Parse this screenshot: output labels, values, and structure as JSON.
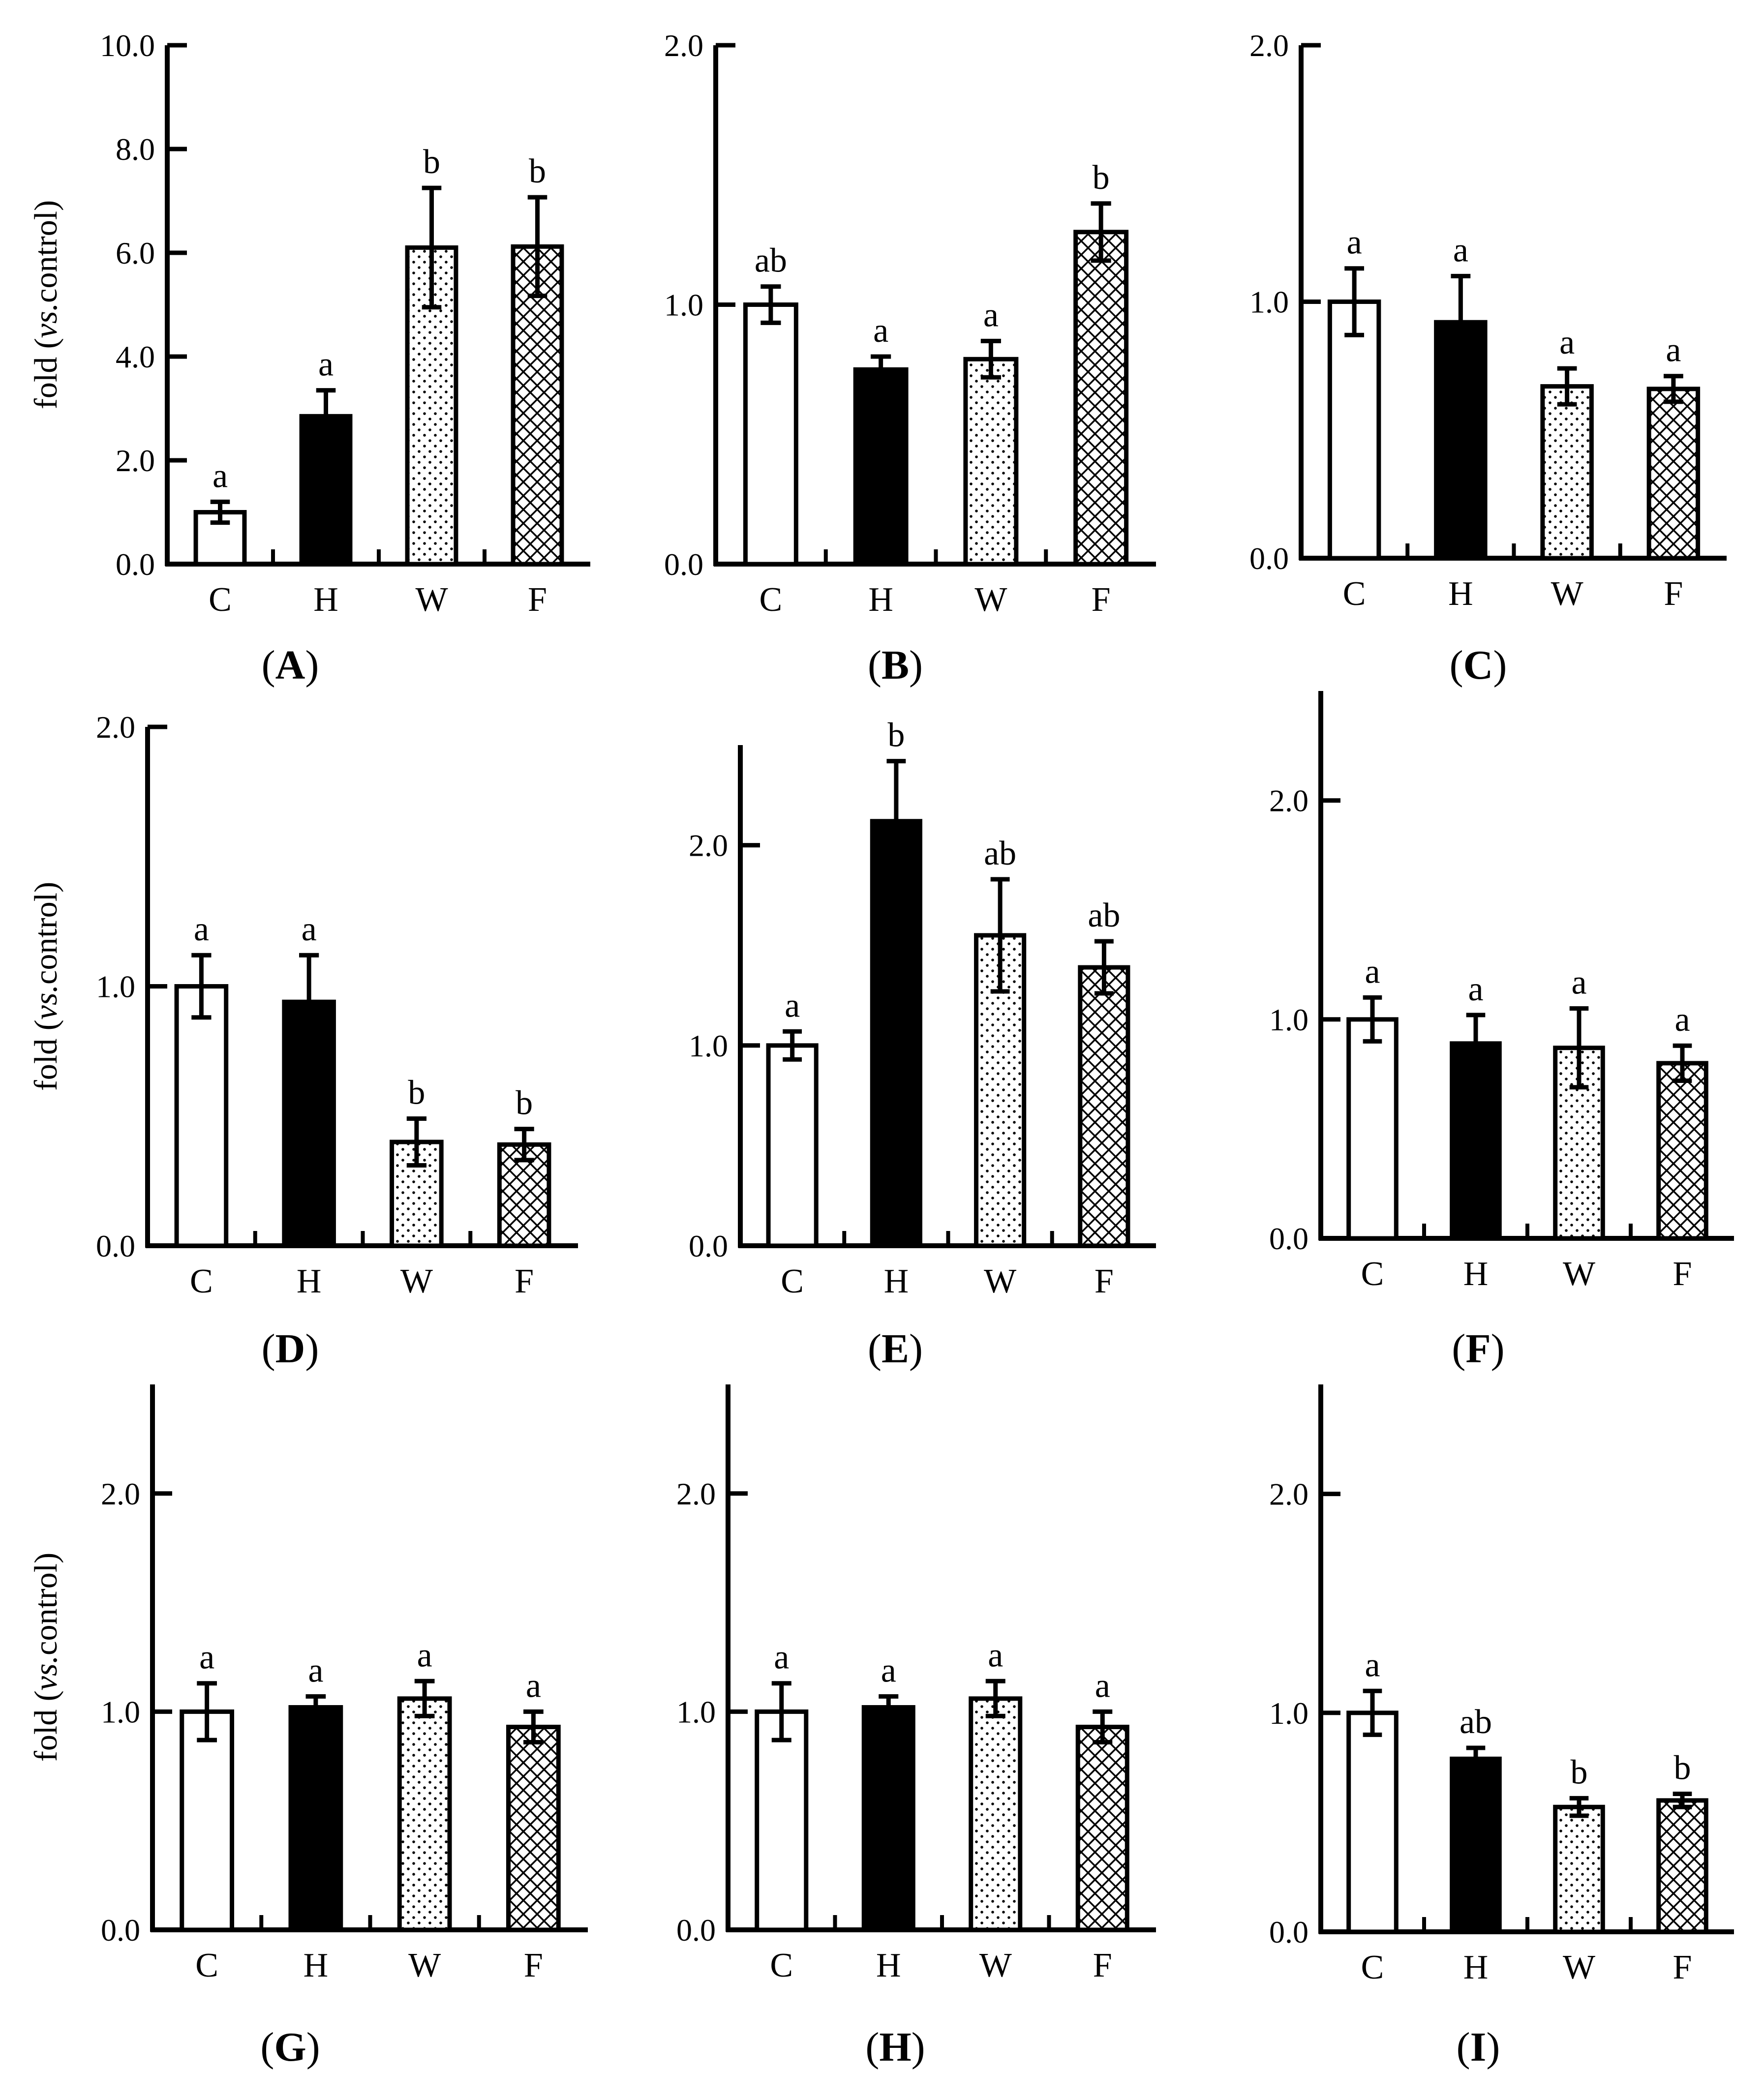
{
  "figure": {
    "ylabel_prefix": "fold (",
    "ylabel_italic": "vs.",
    "ylabel_suffix": "control)"
  },
  "chart_data": [
    {
      "type": "bar",
      "panel": "A",
      "categories": [
        "C",
        "H",
        "W",
        "F"
      ],
      "values": [
        1.0,
        2.85,
        6.1,
        6.12
      ],
      "errors": [
        0.2,
        0.5,
        1.15,
        0.95
      ],
      "sig": [
        "a",
        "a",
        "b",
        "b"
      ],
      "ylim": [
        0,
        10
      ],
      "yticks": [
        "0.0",
        "2.0",
        "4.0",
        "6.0",
        "8.0",
        "10.0"
      ],
      "ylabel": true
    },
    {
      "type": "bar",
      "panel": "B",
      "categories": [
        "C",
        "H",
        "W",
        "F"
      ],
      "values": [
        1.0,
        0.75,
        0.79,
        1.28
      ],
      "errors": [
        0.07,
        0.05,
        0.07,
        0.11
      ],
      "sig": [
        "ab",
        "a",
        "a",
        "b"
      ],
      "ylim": [
        0,
        2
      ],
      "yticks": [
        "0.0",
        "1.0",
        "2.0"
      ],
      "ylabel": false
    },
    {
      "type": "bar",
      "panel": "C",
      "categories": [
        "C",
        "H",
        "W",
        "F"
      ],
      "values": [
        1.0,
        0.92,
        0.67,
        0.66
      ],
      "errors": [
        0.13,
        0.18,
        0.07,
        0.05
      ],
      "sig": [
        "a",
        "a",
        "a",
        "a"
      ],
      "ylim": [
        0,
        2
      ],
      "yticks": [
        "0.0",
        "1.0",
        "2.0"
      ],
      "ylabel": false
    },
    {
      "type": "bar",
      "panel": "D",
      "categories": [
        "C",
        "H",
        "W",
        "F"
      ],
      "values": [
        1.0,
        0.94,
        0.4,
        0.39
      ],
      "errors": [
        0.12,
        0.18,
        0.09,
        0.06
      ],
      "sig": [
        "a",
        "a",
        "b",
        "b"
      ],
      "ylim": [
        0,
        2
      ],
      "yticks": [
        "0.0",
        "1.0",
        "2.0"
      ],
      "ylabel": true
    },
    {
      "type": "bar",
      "panel": "E",
      "categories": [
        "C",
        "H",
        "W",
        "F"
      ],
      "values": [
        1.0,
        2.12,
        1.55,
        1.39
      ],
      "errors": [
        0.07,
        0.3,
        0.28,
        0.13
      ],
      "sig": [
        "a",
        "b",
        "ab",
        "ab"
      ],
      "ylim": [
        0,
        2.5
      ],
      "yticks": [
        "0.0",
        "1.0",
        "2.0"
      ],
      "ylabel": false
    },
    {
      "type": "bar",
      "panel": "F",
      "categories": [
        "C",
        "H",
        "W",
        "F"
      ],
      "values": [
        1.0,
        0.89,
        0.87,
        0.8
      ],
      "errors": [
        0.1,
        0.13,
        0.18,
        0.08
      ],
      "sig": [
        "a",
        "a",
        "a",
        "a"
      ],
      "ylim": [
        0,
        2.5
      ],
      "yticks": [
        "0.0",
        "1.0",
        "2.0"
      ],
      "ylabel": false
    },
    {
      "type": "bar",
      "panel": "G",
      "categories": [
        "C",
        "H",
        "W",
        "F"
      ],
      "values": [
        1.0,
        1.02,
        1.06,
        0.93
      ],
      "errors": [
        0.13,
        0.05,
        0.08,
        0.07
      ],
      "sig": [
        "a",
        "a",
        "a",
        "a"
      ],
      "ylim": [
        0,
        2.5
      ],
      "yticks": [
        "0.0",
        "1.0",
        "2.0"
      ],
      "ylabel": true
    },
    {
      "type": "bar",
      "panel": "H",
      "categories": [
        "C",
        "H",
        "W",
        "F"
      ],
      "values": [
        1.0,
        1.02,
        1.06,
        0.93
      ],
      "errors": [
        0.13,
        0.05,
        0.08,
        0.07
      ],
      "sig": [
        "a",
        "a",
        "a",
        "a"
      ],
      "ylim": [
        0,
        2.5
      ],
      "yticks": [
        "0.0",
        "1.0",
        "2.0"
      ],
      "ylabel": false
    },
    {
      "type": "bar",
      "panel": "I",
      "categories": [
        "C",
        "H",
        "W",
        "F"
      ],
      "values": [
        1.0,
        0.79,
        0.57,
        0.6
      ],
      "errors": [
        0.1,
        0.05,
        0.04,
        0.03
      ],
      "sig": [
        "a",
        "ab",
        "b",
        "b"
      ],
      "ylim": [
        0,
        2.5
      ],
      "yticks": [
        "0.0",
        "1.0",
        "2.0"
      ],
      "ylabel": false
    }
  ]
}
